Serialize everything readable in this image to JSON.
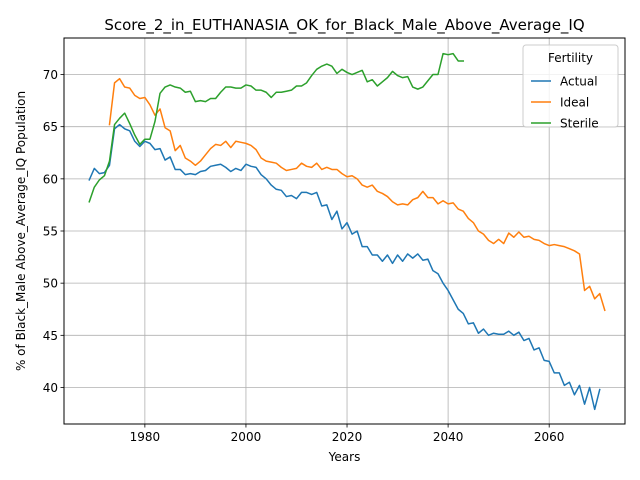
{
  "chart_data": {
    "type": "line",
    "title": "Score_2_in_EUTHANASIA_OK_for_Black_Male_Above_Average_IQ",
    "xlabel": "Years",
    "ylabel": "% of Black_Male Above_Average_IQ Population",
    "xlim": [
      1964,
      2075
    ],
    "ylim": [
      36.5,
      73.5
    ],
    "xticks": [
      1980,
      2000,
      2020,
      2040,
      2060
    ],
    "yticks": [
      40,
      45,
      50,
      55,
      60,
      65,
      70
    ],
    "grid": true,
    "legend": {
      "title": "Fertility",
      "placement": "top-right"
    },
    "series": [
      {
        "name": "Actual",
        "color": "#1f77b4",
        "x_start": 1969,
        "values": [
          59.9,
          61.0,
          60.5,
          60.6,
          61.3,
          64.8,
          65.2,
          64.8,
          64.6,
          63.6,
          63.1,
          63.6,
          63.4,
          62.8,
          62.9,
          61.8,
          62.1,
          60.9,
          60.9,
          60.4,
          60.5,
          60.4,
          60.7,
          60.8,
          61.2,
          61.3,
          61.4,
          61.1,
          60.7,
          61.0,
          60.8,
          61.4,
          61.2,
          61.1,
          60.4,
          60.0,
          59.4,
          59.0,
          58.9,
          58.3,
          58.4,
          58.1,
          58.7,
          58.7,
          58.5,
          58.7,
          57.4,
          57.5,
          56.1,
          56.9,
          55.2,
          55.8,
          54.7,
          55.0,
          53.5,
          53.5,
          52.7,
          52.7,
          52.1,
          52.7,
          51.9,
          52.7,
          52.1,
          52.8,
          52.4,
          52.8,
          52.2,
          52.3,
          51.2,
          50.9,
          50.0,
          49.3,
          48.4,
          47.5,
          47.1,
          46.1,
          46.2,
          45.2,
          45.6,
          45.0,
          45.2,
          45.1,
          45.1,
          45.4,
          45.0,
          45.3,
          44.5,
          44.7,
          43.6,
          43.8,
          42.6,
          42.5,
          41.4,
          41.4,
          40.2,
          40.5,
          39.3,
          40.2,
          38.4,
          40.0,
          37.9,
          39.8
        ]
      },
      {
        "name": "Ideal",
        "color": "#ff7f0e",
        "x_start": 1973,
        "values": [
          65.2,
          69.2,
          69.6,
          68.8,
          68.7,
          68.0,
          67.7,
          67.8,
          67.1,
          66.1,
          66.7,
          64.9,
          64.6,
          62.7,
          63.2,
          62.0,
          61.7,
          61.3,
          61.7,
          62.3,
          62.9,
          63.3,
          63.2,
          63.6,
          63.0,
          63.6,
          63.5,
          63.4,
          63.2,
          62.8,
          62.0,
          61.7,
          61.6,
          61.5,
          61.1,
          60.8,
          60.9,
          61.0,
          61.5,
          61.2,
          61.1,
          61.5,
          60.9,
          61.1,
          60.9,
          60.9,
          60.5,
          60.2,
          60.3,
          60.0,
          59.4,
          59.2,
          59.4,
          58.8,
          58.6,
          58.3,
          57.8,
          57.5,
          57.6,
          57.5,
          58.0,
          58.2,
          58.8,
          58.2,
          58.2,
          57.6,
          57.9,
          57.6,
          57.7,
          57.1,
          56.9,
          56.2,
          55.8,
          55.0,
          54.7,
          54.1,
          53.8,
          54.2,
          53.8,
          54.8,
          54.4,
          54.9,
          54.4,
          54.5,
          54.2,
          54.1,
          53.8,
          53.6,
          53.7,
          53.6,
          53.5,
          53.3,
          53.1,
          52.8,
          49.3,
          49.7,
          48.5,
          49.0,
          47.4
        ]
      },
      {
        "name": "Sterile",
        "color": "#2ca02c",
        "x_start": 1969,
        "values": [
          57.8,
          59.2,
          59.9,
          60.3,
          61.7,
          65.2,
          65.8,
          66.3,
          65.3,
          64.2,
          63.3,
          63.8,
          63.8,
          65.5,
          68.2,
          68.8,
          69.0,
          68.8,
          68.7,
          68.3,
          68.4,
          67.4,
          67.5,
          67.4,
          67.7,
          67.7,
          68.3,
          68.8,
          68.8,
          68.7,
          68.7,
          69.0,
          68.9,
          68.5,
          68.5,
          68.3,
          67.8,
          68.3,
          68.3,
          68.4,
          68.5,
          68.9,
          68.9,
          69.2,
          69.9,
          70.5,
          70.8,
          71.0,
          70.8,
          70.1,
          70.5,
          70.2,
          70.0,
          70.2,
          70.4,
          69.3,
          69.5,
          68.9,
          69.3,
          69.7,
          70.3,
          69.9,
          69.7,
          69.8,
          68.8,
          68.6,
          68.8,
          69.4,
          70.0,
          70.0,
          72.0,
          71.9,
          72.0,
          71.3,
          71.3
        ]
      }
    ]
  }
}
